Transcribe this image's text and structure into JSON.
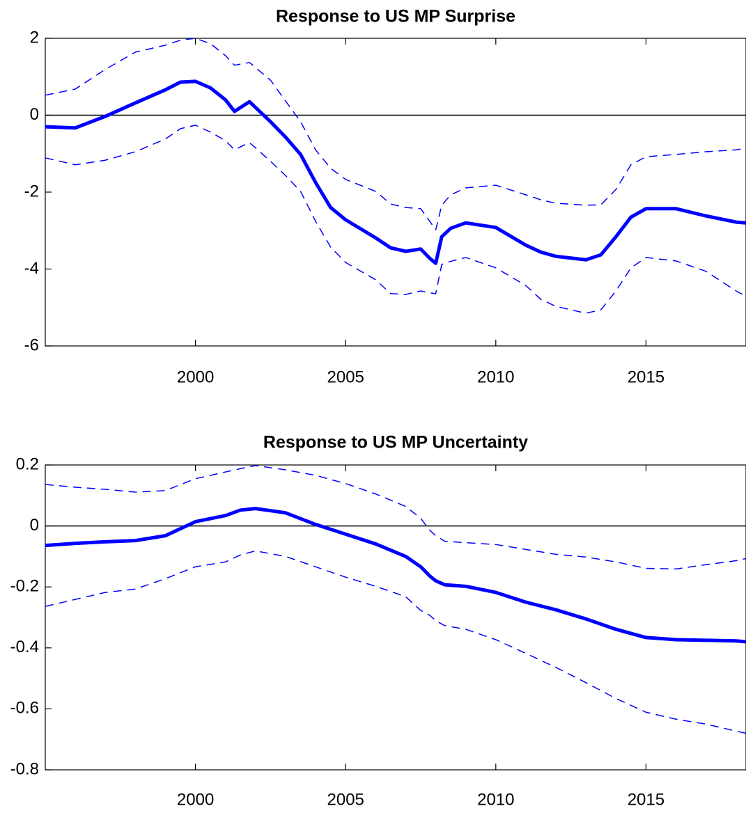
{
  "chart_data": [
    {
      "type": "line",
      "title": "Response to US MP Surprise",
      "x": [
        1995,
        1996,
        1997,
        1998,
        1999,
        1999.5,
        2000,
        2000.5,
        2001,
        2001.3,
        2001.8,
        2002.5,
        2003,
        2003.5,
        2004,
        2004.5,
        2005,
        2006,
        2006.5,
        2007,
        2007.5,
        2007.8,
        2008,
        2008.2,
        2008.5,
        2009,
        2010,
        2011,
        2011.5,
        2012,
        2013,
        2013.5,
        2014,
        2014.5,
        2015,
        2016,
        2017,
        2018,
        2018.33
      ],
      "series": [
        {
          "color": "#0000ff",
          "style": "solid",
          "values": [
            -0.3,
            -0.33,
            -0.03,
            0.32,
            0.66,
            0.86,
            0.88,
            0.71,
            0.4,
            0.1,
            0.35,
            -0.17,
            -0.57,
            -1.02,
            -1.75,
            -2.4,
            -2.72,
            -3.19,
            -3.45,
            -3.54,
            -3.48,
            -3.72,
            -3.85,
            -3.16,
            -2.94,
            -2.8,
            -2.92,
            -3.38,
            -3.56,
            -3.67,
            -3.76,
            -3.63,
            -3.16,
            -2.65,
            -2.43,
            -2.43,
            -2.62,
            -2.78,
            -2.8
          ]
        },
        {
          "color": "#0000ff",
          "style": "dashed",
          "values": [
            0.52,
            0.68,
            1.19,
            1.64,
            1.82,
            1.95,
            2.0,
            1.86,
            1.55,
            1.3,
            1.37,
            0.91,
            0.37,
            -0.17,
            -0.9,
            -1.38,
            -1.67,
            -1.98,
            -2.31,
            -2.4,
            -2.43,
            -2.76,
            -2.98,
            -2.34,
            -2.07,
            -1.89,
            -1.82,
            -2.07,
            -2.2,
            -2.29,
            -2.34,
            -2.33,
            -1.93,
            -1.29,
            -1.08,
            -1.02,
            -0.95,
            -0.9,
            -0.86
          ]
        },
        {
          "color": "#0000ff",
          "style": "dashed",
          "values": [
            -1.11,
            -1.29,
            -1.17,
            -0.95,
            -0.62,
            -0.35,
            -0.26,
            -0.44,
            -0.66,
            -0.9,
            -0.71,
            -1.2,
            -1.57,
            -1.98,
            -2.76,
            -3.43,
            -3.83,
            -4.28,
            -4.64,
            -4.66,
            -4.57,
            -4.62,
            -4.64,
            -3.88,
            -3.8,
            -3.7,
            -3.97,
            -4.43,
            -4.79,
            -4.97,
            -5.15,
            -5.06,
            -4.57,
            -3.97,
            -3.7,
            -3.79,
            -4.06,
            -4.57,
            -4.71
          ]
        }
      ],
      "xlim": [
        1995,
        2018.33
      ],
      "xticks": [
        2000,
        2005,
        2010,
        2015
      ],
      "ylim": [
        -6,
        2
      ],
      "yticks": [
        -6,
        -4,
        -2,
        0,
        2
      ],
      "hlines": [
        0
      ],
      "grid": false
    },
    {
      "type": "line",
      "title": "Response to US MP Uncertainty",
      "x": [
        1995,
        1996,
        1997,
        1998,
        1999,
        2000,
        2001,
        2001.5,
        2002,
        2003,
        2004,
        2005,
        2006,
        2007,
        2007.5,
        2007.8,
        2008,
        2008.3,
        2009,
        2010,
        2011,
        2012,
        2013,
        2014,
        2015,
        2016,
        2017,
        2018,
        2018.33
      ],
      "series": [
        {
          "color": "#0000ff",
          "style": "solid",
          "values": [
            -0.064,
            -0.057,
            -0.052,
            -0.048,
            -0.032,
            0.014,
            0.034,
            0.052,
            0.057,
            0.043,
            0.005,
            -0.027,
            -0.059,
            -0.1,
            -0.134,
            -0.164,
            -0.18,
            -0.193,
            -0.198,
            -0.218,
            -0.25,
            -0.275,
            -0.305,
            -0.339,
            -0.366,
            -0.373,
            -0.375,
            -0.377,
            -0.38
          ]
        },
        {
          "color": "#0000ff",
          "style": "dashed",
          "values": [
            0.136,
            0.127,
            0.12,
            0.111,
            0.116,
            0.155,
            0.177,
            0.188,
            0.198,
            0.184,
            0.166,
            0.139,
            0.105,
            0.064,
            0.025,
            -0.014,
            -0.032,
            -0.05,
            -0.055,
            -0.061,
            -0.077,
            -0.093,
            -0.102,
            -0.118,
            -0.139,
            -0.141,
            -0.127,
            -0.114,
            -0.107
          ]
        },
        {
          "color": "#0000ff",
          "style": "dashed",
          "values": [
            -0.264,
            -0.241,
            -0.218,
            -0.207,
            -0.173,
            -0.134,
            -0.118,
            -0.095,
            -0.082,
            -0.1,
            -0.134,
            -0.168,
            -0.198,
            -0.232,
            -0.277,
            -0.293,
            -0.311,
            -0.327,
            -0.339,
            -0.373,
            -0.418,
            -0.464,
            -0.514,
            -0.566,
            -0.611,
            -0.634,
            -0.65,
            -0.673,
            -0.68
          ]
        }
      ],
      "xlim": [
        1995,
        2018.33
      ],
      "xticks": [
        2000,
        2005,
        2010,
        2015
      ],
      "ylim": [
        -0.8,
        0.2
      ],
      "yticks": [
        -0.8,
        -0.6,
        -0.4,
        -0.2,
        0,
        0.2
      ],
      "hlines": [
        0
      ],
      "grid": false
    }
  ]
}
